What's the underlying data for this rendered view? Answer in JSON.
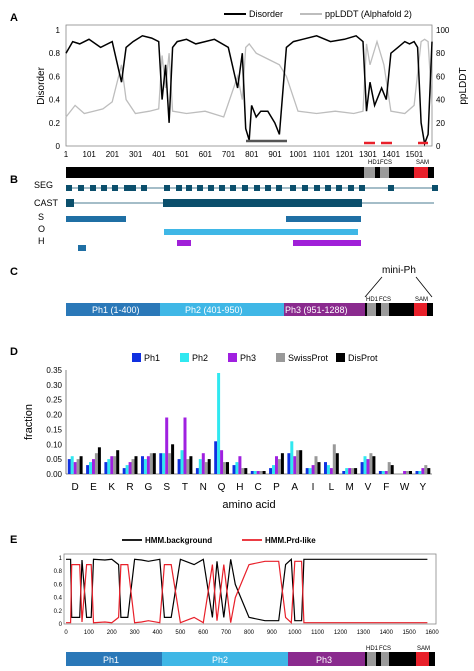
{
  "panel_labels": {
    "a": "A",
    "b": "B",
    "c": "C",
    "d": "D",
    "e": "E"
  },
  "colors": {
    "black": "#000000",
    "gray": "#bdbdbd",
    "red": "#e8202a",
    "seg": "#0b4f6c",
    "ph1": "#2a78b8",
    "ph2": "#3fb7e6",
    "ph3": "#8a2a8e",
    "purple": "#a020d8",
    "bar_ph1": "#1030e0",
    "bar_ph2": "#30e8f0",
    "bar_ph3": "#a020e0",
    "bar_swiss": "#999999",
    "bar_disprot": "#000000"
  },
  "panel_a": {
    "legend": [
      "Disorder",
      "ppLDDT (Alphafold 2)"
    ],
    "ylabel_left": "Disorder",
    "ylabel_right": "ppLDDT",
    "yticks_left": [
      "0",
      "0.2",
      "0.4",
      "0.6",
      "0.8",
      "1"
    ],
    "yticks_right": [
      "0",
      "20",
      "40",
      "60",
      "80",
      "100"
    ],
    "xticks": [
      "1",
      "101",
      "201",
      "301",
      "401",
      "501",
      "601",
      "701",
      "801",
      "901",
      "1001",
      "1101",
      "1201",
      "1301",
      "1401",
      "1501"
    ],
    "domains": [
      "HD1",
      "FCS",
      "SAM"
    ]
  },
  "panel_b": {
    "rows": [
      "SEG",
      "CAST",
      "S",
      "O",
      "H"
    ]
  },
  "panel_c": {
    "segments": [
      "Ph1 (1-400)",
      "Ph2 (401-950)",
      "Ph3 (951-1288)"
    ],
    "domains": [
      "HD1",
      "FCS",
      "SAM"
    ],
    "mini": "mini-Ph"
  },
  "panel_d": {
    "legend": [
      "Ph1",
      "Ph2",
      "Ph3",
      "SwissProt",
      "DisProt"
    ],
    "ylabel": "fraction",
    "xlabel": "amino acid",
    "yticks": [
      "0.00",
      "0.05",
      "0.10",
      "0.15",
      "0.20",
      "0.25",
      "0.30",
      "0.35"
    ]
  },
  "panel_e": {
    "legend": [
      "HMM.background",
      "HMM.Prd-like"
    ],
    "yticks": [
      "0",
      "0.2",
      "0.4",
      "0.6",
      "0.8",
      "1"
    ],
    "xticks": [
      "0",
      "100",
      "200",
      "300",
      "400",
      "500",
      "600",
      "700",
      "800",
      "900",
      "1000",
      "1100",
      "1200",
      "1300",
      "1400",
      "1500",
      "1600"
    ],
    "segments": [
      "Ph1",
      "Ph2",
      "Ph3"
    ],
    "domains": [
      "HD1",
      "FCS",
      "SAM"
    ]
  },
  "chart_data": [
    {
      "type": "line",
      "panel": "A",
      "xlim": [
        1,
        1577
      ],
      "ylim_left": [
        0,
        1
      ],
      "ylim_right": [
        0,
        100
      ],
      "series": [
        {
          "name": "Disorder",
          "x": [
            1,
            30,
            60,
            100,
            150,
            200,
            240,
            260,
            290,
            330,
            370,
            400,
            415,
            430,
            445,
            460,
            480,
            520,
            560,
            600,
            640,
            700,
            740,
            760,
            775,
            790,
            800,
            820,
            840,
            870,
            900,
            920,
            950,
            980,
            1020,
            1080,
            1140,
            1200,
            1250,
            1280,
            1295,
            1310,
            1330,
            1360,
            1380,
            1400,
            1430,
            1460,
            1480,
            1500,
            1515,
            1530,
            1545,
            1560,
            1577
          ],
          "y": [
            0.8,
            0.9,
            0.88,
            0.92,
            0.85,
            0.9,
            0.55,
            0.85,
            0.9,
            0.95,
            0.93,
            0.9,
            0.4,
            0.7,
            0.2,
            0.85,
            0.9,
            0.92,
            0.88,
            0.9,
            0.92,
            0.85,
            0.5,
            0.8,
            0.15,
            0.05,
            0.35,
            0.25,
            0.3,
            0.3,
            0.2,
            0.1,
            0.85,
            0.9,
            0.92,
            0.95,
            0.9,
            0.92,
            0.95,
            0.9,
            0.3,
            0.55,
            0.35,
            0.5,
            0.4,
            0.8,
            0.85,
            0.9,
            0.88,
            0.9,
            0.85,
            0.2,
            0.02,
            0.1,
            0.9
          ]
        },
        {
          "name": "ppLDDT (Alphafold 2)",
          "x": [
            1,
            40,
            80,
            120,
            160,
            200,
            240,
            260,
            300,
            360,
            400,
            415,
            430,
            445,
            460,
            520,
            600,
            680,
            740,
            760,
            775,
            790,
            820,
            870,
            920,
            950,
            1000,
            1080,
            1160,
            1240,
            1280,
            1295,
            1310,
            1340,
            1370,
            1400,
            1460,
            1500,
            1530,
            1545,
            1560,
            1577
          ],
          "y": [
            25,
            35,
            28,
            30,
            32,
            38,
            70,
            40,
            28,
            30,
            32,
            78,
            50,
            80,
            30,
            28,
            30,
            25,
            60,
            40,
            85,
            88,
            80,
            75,
            70,
            60,
            30,
            28,
            30,
            28,
            30,
            88,
            70,
            90,
            70,
            30,
            28,
            35,
            90,
            92,
            90,
            35
          ]
        }
      ],
      "annotations": [
        "bar 790-950 at 0.05",
        "red segments ~1320-1390, 1410-1460, 1520-1560"
      ]
    },
    {
      "type": "bar",
      "panel": "D",
      "categories": [
        "D",
        "E",
        "K",
        "R",
        "G",
        "S",
        "T",
        "N",
        "Q",
        "H",
        "C",
        "P",
        "A",
        "I",
        "L",
        "M",
        "V",
        "F",
        "W",
        "Y"
      ],
      "ylim": [
        0,
        0.35
      ],
      "series": [
        {
          "name": "Ph1",
          "values": [
            0.05,
            0.03,
            0.04,
            0.02,
            0.06,
            0.07,
            0.05,
            0.02,
            0.11,
            0.03,
            0.01,
            0.02,
            0.07,
            0.02,
            0.04,
            0.01,
            0.04,
            0.01,
            0.0,
            0.01
          ]
        },
        {
          "name": "Ph2",
          "values": [
            0.06,
            0.04,
            0.05,
            0.03,
            0.05,
            0.07,
            0.08,
            0.05,
            0.34,
            0.04,
            0.01,
            0.03,
            0.11,
            0.02,
            0.03,
            0.02,
            0.06,
            0.01,
            0.0,
            0.01
          ]
        },
        {
          "name": "Ph3",
          "values": [
            0.04,
            0.05,
            0.06,
            0.04,
            0.06,
            0.19,
            0.19,
            0.07,
            0.08,
            0.06,
            0.01,
            0.06,
            0.06,
            0.03,
            0.02,
            0.02,
            0.05,
            0.01,
            0.01,
            0.02
          ]
        },
        {
          "name": "SwissProt",
          "values": [
            0.05,
            0.07,
            0.06,
            0.05,
            0.07,
            0.07,
            0.05,
            0.04,
            0.04,
            0.02,
            0.01,
            0.05,
            0.08,
            0.06,
            0.1,
            0.02,
            0.07,
            0.04,
            0.01,
            0.03
          ]
        },
        {
          "name": "DisProt",
          "values": [
            0.06,
            0.09,
            0.08,
            0.06,
            0.07,
            0.1,
            0.06,
            0.05,
            0.04,
            0.02,
            0.01,
            0.07,
            0.08,
            0.04,
            0.07,
            0.02,
            0.06,
            0.03,
            0.01,
            0.02
          ]
        }
      ]
    },
    {
      "type": "line",
      "panel": "E",
      "xlim": [
        0,
        1600
      ],
      "ylim": [
        0,
        1
      ],
      "series": [
        {
          "name": "HMM.background",
          "x": [
            0,
            20,
            25,
            60,
            70,
            90,
            110,
            120,
            170,
            200,
            230,
            240,
            270,
            300,
            330,
            360,
            410,
            430,
            460,
            500,
            560,
            600,
            640,
            660,
            690,
            720,
            740,
            800,
            870,
            930,
            960,
            985,
            1000,
            1030,
            1040,
            1060,
            1100,
            1200,
            1300,
            1400,
            1500,
            1580
          ],
          "y": [
            0.98,
            0.98,
            0.1,
            0.1,
            0.97,
            0.1,
            0.1,
            0.98,
            0.97,
            0.98,
            0.9,
            0.1,
            0.1,
            0.98,
            0.97,
            0.95,
            0.98,
            0.1,
            0.1,
            0.98,
            0.9,
            0.98,
            0.1,
            0.95,
            0.1,
            0.98,
            0.6,
            0.1,
            0.05,
            0.05,
            0.9,
            0.98,
            0.05,
            0.05,
            0.98,
            0.98,
            0.98,
            0.98,
            0.98,
            0.98,
            0.98,
            0.98
          ]
        },
        {
          "name": "HMM.Prd-like",
          "x": [
            0,
            20,
            25,
            60,
            70,
            90,
            110,
            120,
            170,
            200,
            230,
            240,
            270,
            300,
            330,
            360,
            410,
            430,
            460,
            500,
            560,
            600,
            640,
            660,
            690,
            720,
            740,
            800,
            870,
            930,
            960,
            985,
            1000,
            1030,
            1040,
            1060,
            1100,
            1200,
            1300,
            1400,
            1500,
            1580
          ],
          "y": [
            0.02,
            0.02,
            0.9,
            0.9,
            0.03,
            0.9,
            0.9,
            0.02,
            0.03,
            0.02,
            0.1,
            0.9,
            0.9,
            0.02,
            0.03,
            0.05,
            0.02,
            0.9,
            0.9,
            0.02,
            0.1,
            0.02,
            0.9,
            0.05,
            0.9,
            0.02,
            0.4,
            0.9,
            0.95,
            0.95,
            0.1,
            0.02,
            0.95,
            0.95,
            0.02,
            0.02,
            0.02,
            0.02,
            0.02,
            0.02,
            0.02,
            0.02
          ]
        }
      ]
    }
  ]
}
